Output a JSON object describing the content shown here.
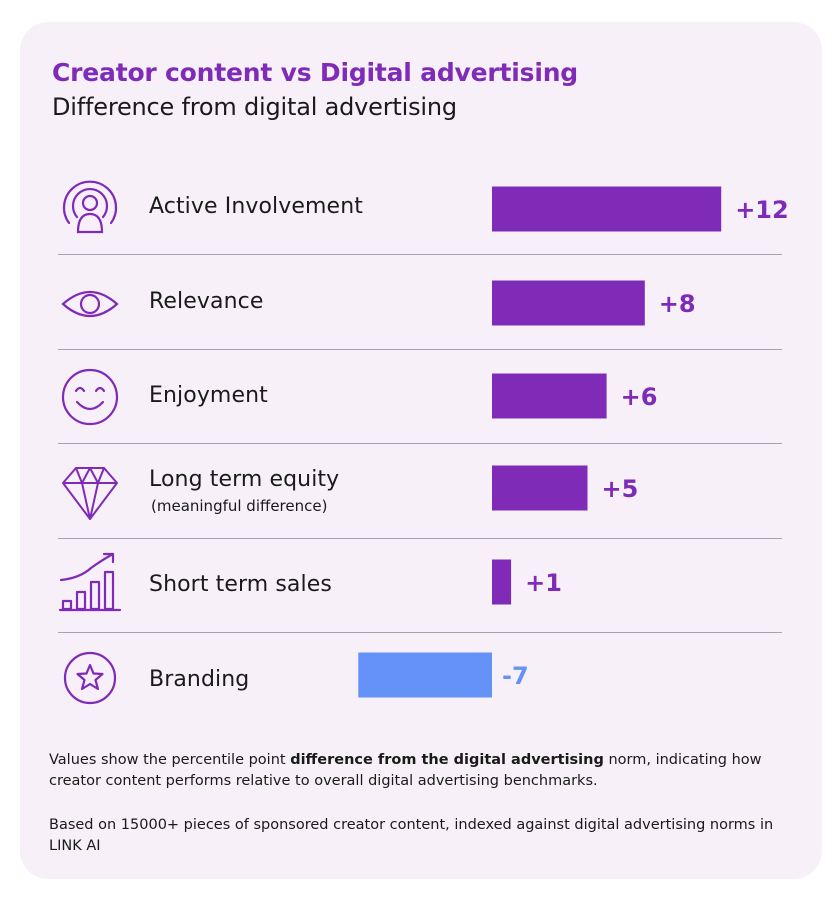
{
  "title": "Creator content vs Digital advertising",
  "subtitle": "Difference from digital advertising",
  "colors": {
    "positive": "#7f2bb8",
    "negative": "#6592f7",
    "card_background": "#f7f0f8",
    "title": "#7f2bb8",
    "icon": "#7f2bb8"
  },
  "rows": [
    {
      "label": "Active Involvement",
      "note": "",
      "icon": "podcast-person-icon"
    },
    {
      "label": "Relevance",
      "note": "",
      "icon": "eye-icon"
    },
    {
      "label": "Enjoyment",
      "note": "",
      "icon": "smiley-face-icon"
    },
    {
      "label": "Long term equity",
      "note": "(meaningful difference)",
      "icon": "diamond-icon"
    },
    {
      "label": "Short term sales",
      "note": "",
      "icon": "growth-chart-icon"
    },
    {
      "label": "Branding",
      "note": "",
      "icon": "star-badge-icon"
    }
  ],
  "chart_data": {
    "type": "bar",
    "orientation": "horizontal",
    "categories": [
      "Active Involvement",
      "Relevance",
      "Enjoyment",
      "Long term equity",
      "Short term sales",
      "Branding"
    ],
    "values": [
      12,
      8,
      6,
      5,
      1,
      -7
    ],
    "value_labels": [
      "+12",
      "+8",
      "+6",
      "+5",
      "+1",
      "-7"
    ],
    "title": "Creator content vs Digital advertising",
    "subtitle": "Difference from digital advertising",
    "xlabel": "",
    "ylabel": "",
    "xlim": [
      -7,
      12
    ],
    "grid": false,
    "legend": "none"
  },
  "footnotes": {
    "note1_before": "Values show the percentile point ",
    "note1_bold": "difference from the digital advertising",
    "note1_after": " norm, indicating how creator content performs relative to overall digital advertising benchmarks.",
    "note2": "Based on 15000+ pieces of sponsored creator content, indexed against digital advertising norms in LINK AI"
  }
}
